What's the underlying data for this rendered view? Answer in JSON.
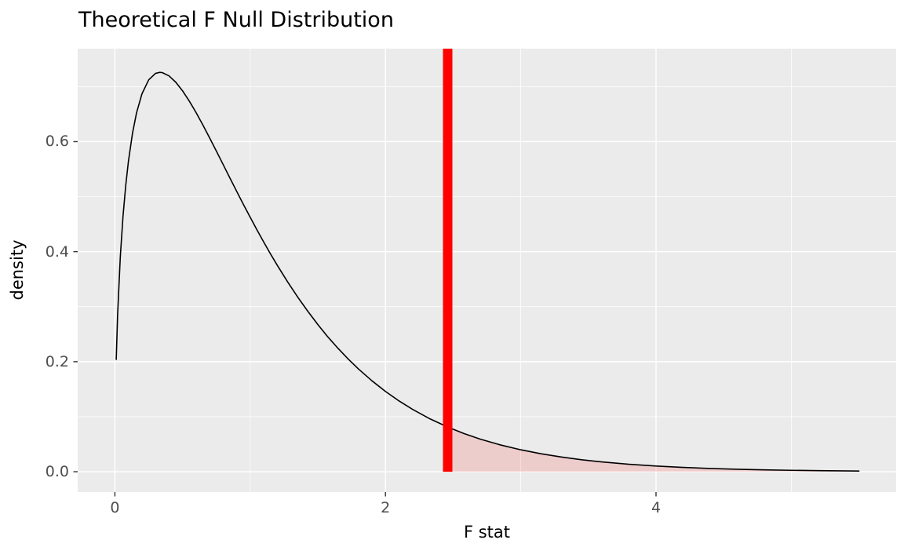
{
  "title": "Theoretical F Null Distribution",
  "axes": {
    "x_label": "F stat",
    "y_label": "density",
    "x_tick_labels": [
      "0",
      "2",
      "4"
    ],
    "y_tick_labels": [
      "0.0",
      "0.2",
      "0.4",
      "0.6"
    ]
  },
  "chart_data": {
    "type": "area",
    "title": "Theoretical F Null Distribution",
    "xlabel": "F stat",
    "ylabel": "density",
    "xlim": [
      -0.275,
      5.775
    ],
    "ylim": [
      -0.037,
      0.769
    ],
    "grid": true,
    "legend": "none",
    "x_major_ticks": [
      0,
      2,
      4
    ],
    "x_minor_ticks": [
      1,
      3,
      5
    ],
    "y_major_ticks": [
      0,
      0.2,
      0.4,
      0.6
    ],
    "y_minor_ticks": [
      0.1,
      0.3,
      0.5,
      0.7
    ],
    "observed_f_stat": 2.46,
    "shade_direction": "right",
    "series": [
      {
        "name": "theoretical-f-null-density",
        "x": [
          0.01,
          0.02,
          0.04,
          0.06,
          0.08,
          0.1,
          0.13,
          0.16,
          0.2,
          0.25,
          0.3,
          0.33,
          0.35,
          0.4,
          0.45,
          0.5,
          0.55,
          0.6,
          0.65,
          0.7,
          0.75,
          0.8,
          0.85,
          0.9,
          0.95,
          1.0,
          1.05,
          1.1,
          1.15,
          1.2,
          1.275,
          1.35,
          1.425,
          1.5,
          1.575,
          1.65,
          1.725,
          1.8,
          1.9,
          2.0,
          2.1,
          2.2,
          2.33,
          2.46,
          2.58,
          2.7,
          2.85,
          3.0,
          3.15,
          3.3,
          3.45,
          3.6,
          3.8,
          4.0,
          4.2,
          4.4,
          4.6,
          4.8,
          5.0,
          5.2,
          5.35,
          5.5
        ],
        "y": [
          0.2042,
          0.2845,
          0.3904,
          0.4641,
          0.52,
          0.5642,
          0.615,
          0.6523,
          0.6868,
          0.7124,
          0.724,
          0.7259,
          0.7255,
          0.7195,
          0.708,
          0.6924,
          0.6737,
          0.6529,
          0.6304,
          0.6069,
          0.5829,
          0.5585,
          0.534,
          0.5098,
          0.4858,
          0.4626,
          0.4396,
          0.4176,
          0.396,
          0.3754,
          0.3457,
          0.3179,
          0.292,
          0.2676,
          0.2448,
          0.2241,
          0.2047,
          0.1869,
          0.1653,
          0.146,
          0.1287,
          0.1134,
          0.096,
          0.0812,
          0.0695,
          0.0593,
          0.0487,
          0.0399,
          0.0326,
          0.0267,
          0.0218,
          0.0178,
          0.0135,
          0.0103,
          0.0078,
          0.0059,
          0.0045,
          0.0034,
          0.0026,
          0.0019,
          0.0016,
          0.0013
        ]
      }
    ],
    "colors": {
      "panel_background": "#EBEBEB",
      "gridline": "#FFFFFF",
      "curve": "#000000",
      "observed_stat_line": "#FF0000",
      "shade_fill": "#FF0000",
      "shade_opacity": 0.13,
      "tick_mark": "#333333",
      "tick_label": "#4D4D4D",
      "axis_title": "#000000",
      "title": "#000000"
    }
  }
}
